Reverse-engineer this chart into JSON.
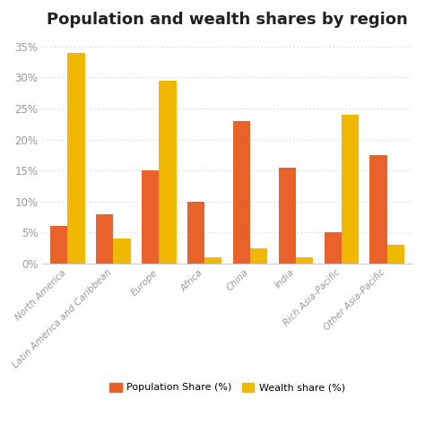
{
  "title": "Population and wealth shares by region",
  "categories": [
    "North America",
    "Latin America and Caribbean",
    "Europe",
    "Africa",
    "China",
    "India",
    "Rich Asia-Pacific",
    "Other Asia-Pacific"
  ],
  "population_share": [
    6,
    8,
    15,
    10,
    23,
    15.5,
    5,
    17.5
  ],
  "wealth_share": [
    34,
    4,
    29.5,
    1,
    2.5,
    1,
    24,
    3
  ],
  "pop_color": "#E8622A",
  "wealth_color": "#F0B800",
  "title_fontsize": 13,
  "ylabel_ticks": [
    "0%",
    "5%",
    "10%",
    "15%",
    "20%",
    "25%",
    "30%",
    "35%"
  ],
  "ytick_vals": [
    0,
    5,
    10,
    15,
    20,
    25,
    30,
    35
  ],
  "ylim": [
    0,
    37
  ],
  "background_color": "#ffffff",
  "legend_pop_label": "Population Share (%)",
  "legend_wealth_label": "Wealth share (%)",
  "bar_width": 0.38,
  "grid_color": "#cccccc",
  "tick_label_color": "#999999",
  "xlabel_fontsize": 7.5
}
